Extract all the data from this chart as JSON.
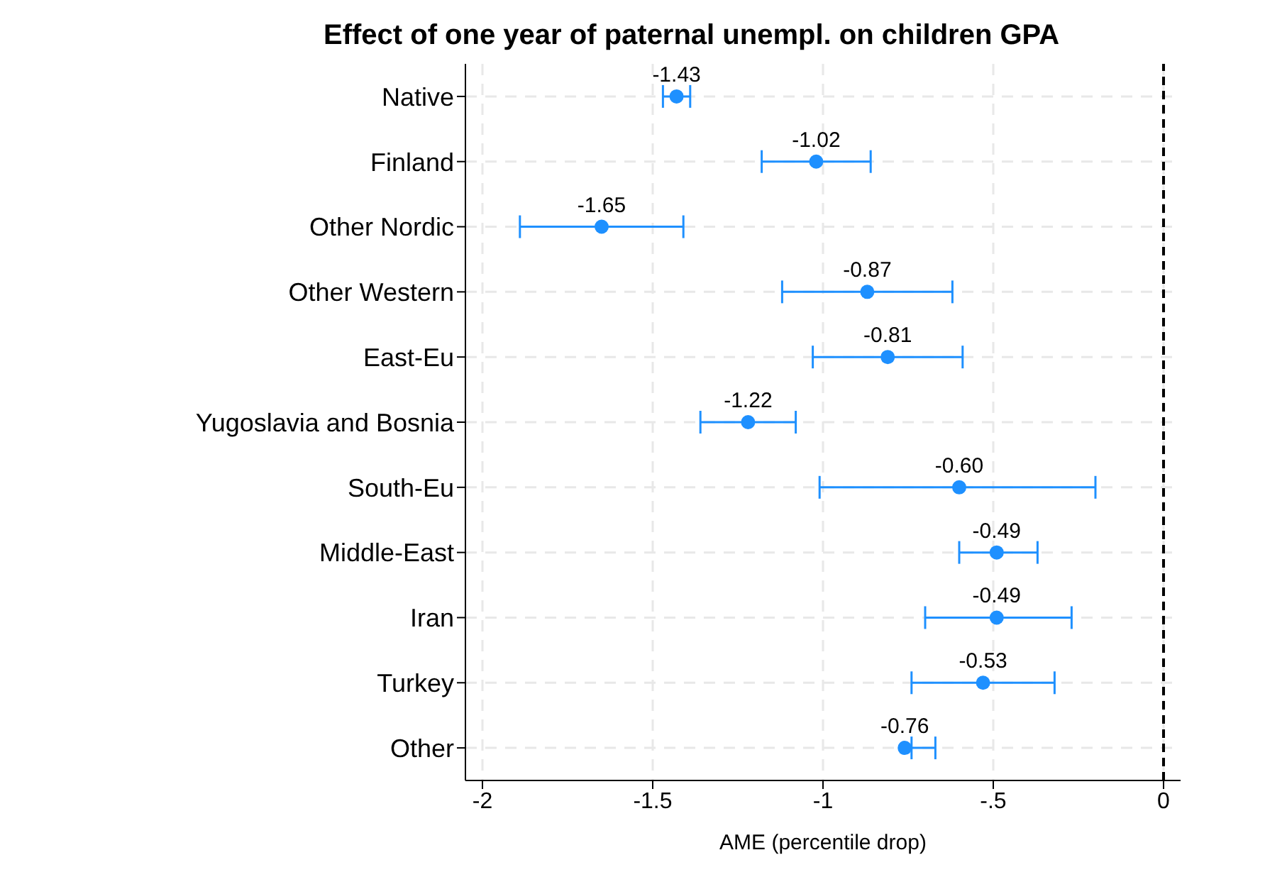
{
  "chart_data": {
    "type": "scatter",
    "title": "Effect of one year of paternal unempl. on children GPA",
    "xlabel": "AME (percentile drop)",
    "orientation": "horizontal",
    "categories": [
      "Native",
      "Finland",
      "Other Nordic",
      "Other Western",
      "East-Eu",
      "Yugoslavia and Bosnia",
      "South-Eu",
      "Middle-East",
      "Iran",
      "Turkey",
      "Other"
    ],
    "series": [
      {
        "color": "#1e90ff",
        "values": [
          -1.43,
          -1.02,
          -1.65,
          -0.87,
          -0.81,
          -1.22,
          -0.6,
          -0.49,
          -0.49,
          -0.53,
          -0.76
        ],
        "value_labels": [
          "-1.43",
          "-1.02",
          "-1.65",
          "-0.87",
          "-0.81",
          "-1.22",
          "-0.60",
          "-0.49",
          "-0.49",
          "-0.53",
          "-0.76"
        ],
        "errors": [
          [
            -1.47,
            -1.39
          ],
          [
            -1.18,
            -0.86
          ],
          [
            -1.89,
            -1.41
          ],
          [
            -1.12,
            -0.62
          ],
          [
            -1.03,
            -0.59
          ],
          [
            -1.36,
            -1.08
          ],
          [
            -1.01,
            -0.2
          ],
          [
            -0.6,
            -0.37
          ],
          [
            -0.7,
            -0.27
          ],
          [
            -0.74,
            -0.32
          ],
          [
            -0.74,
            -0.67
          ]
        ]
      }
    ],
    "xlim": [
      -2.05,
      0.05
    ],
    "xticks": [
      -2,
      -1.5,
      -1,
      {
        "value": -0.5,
        "label": "-.5"
      },
      0
    ],
    "ref_lines": [
      {
        "axis": "x",
        "value": 0,
        "color": "#000000",
        "line_style": "dashed"
      }
    ],
    "grid": true,
    "marker": "circle"
  }
}
